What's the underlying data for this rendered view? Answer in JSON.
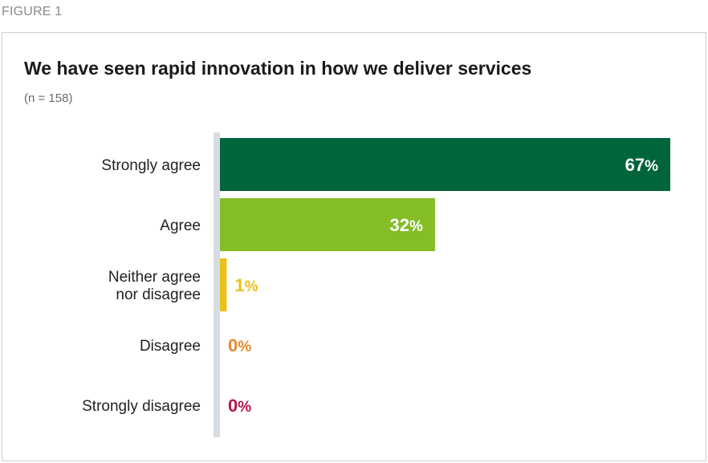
{
  "figure_label": "FIGURE 1",
  "chart_data": {
    "type": "bar",
    "orientation": "horizontal",
    "title": "We have seen rapid innovation in how we deliver services",
    "subtitle": "(n = 158)",
    "xlabel": "",
    "ylabel": "",
    "xlim": [
      0,
      67
    ],
    "grid": false,
    "legend": "none",
    "categories": [
      [
        "Strongly agree"
      ],
      [
        "Agree"
      ],
      [
        "Neither agree",
        "nor disagree"
      ],
      [
        "Disagree"
      ],
      [
        "Strongly disagree"
      ]
    ],
    "values": [
      67,
      32,
      1,
      0,
      0
    ],
    "value_labels": [
      "67",
      "32",
      "1",
      "0",
      "0"
    ],
    "unit": "%",
    "bar_colors": [
      "#00653a",
      "#84bd25",
      "#e9c11a",
      "#e4892c",
      "#b3174c"
    ],
    "label_colors": [
      "#ffffff",
      "#ffffff",
      "#e9c11a",
      "#e4892c",
      "#b3174c"
    ],
    "axis_color": "#d6dde2"
  }
}
